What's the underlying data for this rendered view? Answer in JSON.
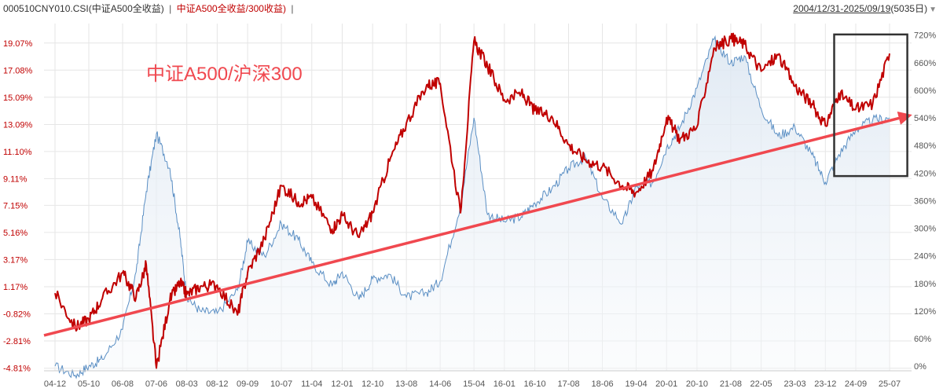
{
  "header": {
    "series1": "000510CNY010.CSI(中证A500全收益)",
    "sep1": "|",
    "series2": "中证A500全收益/300收益)",
    "sep2": "|",
    "date_range": "2004/12/31-2025/09/19",
    "days": "(5035日)",
    "dropdown_icon": "triangle-down-icon"
  },
  "annotation": {
    "text": "中证A500/沪深300",
    "color": "#f0484f"
  },
  "colors": {
    "ratio_line": "#c00000",
    "index_line": "#5b8fc4",
    "index_fill": "#e8eef6",
    "trend_arrow": "#f0484f",
    "highlight_box": "#333333",
    "grid": "#e6e6e6",
    "left_axis_text": "#c00000",
    "right_axis_text": "#555555",
    "x_axis_text": "#555555"
  },
  "chart_data": {
    "type": "line",
    "x_ticks": [
      "04-12",
      "05-10",
      "06-08",
      "07-06",
      "08-03",
      "08-12",
      "09-09",
      "10-07",
      "11-04",
      "12-01",
      "12-10",
      "13-08",
      "14-06",
      "15-04",
      "16-01",
      "16-10",
      "17-08",
      "18-06",
      "19-04",
      "20-01",
      "20-10",
      "21-08",
      "22-05",
      "23-03",
      "23-12",
      "24-09",
      "25-07"
    ],
    "y_left_ticks": [
      "19.07%",
      "17.08%",
      "15.09%",
      "13.09%",
      "11.10%",
      "9.11%",
      "7.15%",
      "5.16%",
      "3.17%",
      "1.17%",
      "-0.82%",
      "-2.81%",
      "-4.81%"
    ],
    "y_left_values": [
      19.07,
      17.08,
      15.09,
      13.09,
      11.1,
      9.11,
      7.15,
      5.16,
      3.17,
      1.17,
      -0.82,
      -2.81,
      -4.81
    ],
    "y_right_ticks": [
      "720%",
      "660%",
      "600%",
      "540%",
      "480%",
      "420%",
      "360%",
      "300%",
      "240%",
      "180%",
      "120%",
      "60%",
      "0%"
    ],
    "y_right_values": [
      720,
      660,
      600,
      540,
      480,
      420,
      360,
      300,
      240,
      180,
      120,
      60,
      0
    ],
    "y_left_range": [
      -5.0,
      20.5
    ],
    "y_right_range": [
      -10,
      745
    ],
    "series": [
      {
        "name": "中证A500全收益/300收益",
        "axis": "left",
        "points": [
          [
            "04-12",
            0.7
          ],
          [
            "05-06",
            -1.8
          ],
          [
            "05-10",
            -1.2
          ],
          [
            "06-02",
            0.3
          ],
          [
            "06-08",
            2.2
          ],
          [
            "06-12",
            0.4
          ],
          [
            "07-03",
            2.8
          ],
          [
            "07-06",
            -4.8
          ],
          [
            "07-10",
            0.2
          ],
          [
            "08-01",
            1.5
          ],
          [
            "08-03",
            0.6
          ],
          [
            "08-07",
            1.2
          ],
          [
            "08-12",
            1.3
          ],
          [
            "09-06",
            -0.9
          ],
          [
            "09-09",
            2.2
          ],
          [
            "10-02",
            4.7
          ],
          [
            "10-07",
            8.6
          ],
          [
            "10-12",
            7.4
          ],
          [
            "11-04",
            7.7
          ],
          [
            "11-10",
            5.4
          ],
          [
            "12-01",
            6.4
          ],
          [
            "12-06",
            4.8
          ],
          [
            "12-10",
            6.6
          ],
          [
            "13-03",
            10.4
          ],
          [
            "13-08",
            13.2
          ],
          [
            "14-02",
            16.0
          ],
          [
            "14-06",
            16.1
          ],
          [
            "14-12",
            6.6
          ],
          [
            "15-04",
            19.2
          ],
          [
            "15-08",
            17.4
          ],
          [
            "16-01",
            14.9
          ],
          [
            "16-06",
            15.4
          ],
          [
            "16-10",
            14.1
          ],
          [
            "17-03",
            13.7
          ],
          [
            "17-08",
            11.6
          ],
          [
            "18-01",
            10.5
          ],
          [
            "18-06",
            10.0
          ],
          [
            "18-12",
            8.6
          ],
          [
            "19-04",
            8.1
          ],
          [
            "19-09",
            9.7
          ],
          [
            "20-01",
            13.6
          ],
          [
            "20-05",
            12.0
          ],
          [
            "20-10",
            12.9
          ],
          [
            "21-03",
            18.7
          ],
          [
            "21-08",
            19.4
          ],
          [
            "21-12",
            19.0
          ],
          [
            "22-05",
            17.0
          ],
          [
            "22-10",
            18.2
          ],
          [
            "23-03",
            15.9
          ],
          [
            "23-08",
            14.6
          ],
          [
            "23-12",
            13.0
          ],
          [
            "24-04",
            15.4
          ],
          [
            "24-09",
            14.2
          ],
          [
            "25-02",
            14.6
          ],
          [
            "25-07",
            18.3
          ]
        ]
      },
      {
        "name": "000510CNY010.CSI(中证A500全收益)",
        "axis": "right",
        "points": [
          [
            "04-12",
            0
          ],
          [
            "05-06",
            -20
          ],
          [
            "05-10",
            0
          ],
          [
            "06-02",
            15
          ],
          [
            "06-08",
            80
          ],
          [
            "06-12",
            205
          ],
          [
            "07-03",
            380
          ],
          [
            "07-06",
            505
          ],
          [
            "07-10",
            430
          ],
          [
            "08-01",
            280
          ],
          [
            "08-03",
            150
          ],
          [
            "08-07",
            120
          ],
          [
            "08-12",
            115
          ],
          [
            "09-06",
            165
          ],
          [
            "09-09",
            270
          ],
          [
            "10-02",
            240
          ],
          [
            "10-07",
            310
          ],
          [
            "10-12",
            275
          ],
          [
            "11-04",
            225
          ],
          [
            "11-10",
            175
          ],
          [
            "12-01",
            205
          ],
          [
            "12-06",
            145
          ],
          [
            "12-10",
            190
          ],
          [
            "13-03",
            200
          ],
          [
            "13-08",
            150
          ],
          [
            "14-02",
            160
          ],
          [
            "14-06",
            185
          ],
          [
            "14-12",
            350
          ],
          [
            "15-04",
            540
          ],
          [
            "15-08",
            330
          ],
          [
            "16-01",
            315
          ],
          [
            "16-06",
            325
          ],
          [
            "16-10",
            355
          ],
          [
            "17-03",
            385
          ],
          [
            "17-08",
            430
          ],
          [
            "18-01",
            455
          ],
          [
            "18-06",
            365
          ],
          [
            "18-12",
            310
          ],
          [
            "19-04",
            390
          ],
          [
            "19-09",
            400
          ],
          [
            "20-01",
            475
          ],
          [
            "20-05",
            520
          ],
          [
            "20-10",
            605
          ],
          [
            "21-03",
            710
          ],
          [
            "21-08",
            660
          ],
          [
            "21-12",
            675
          ],
          [
            "22-05",
            560
          ],
          [
            "22-10",
            500
          ],
          [
            "23-03",
            520
          ],
          [
            "23-08",
            460
          ],
          [
            "23-12",
            400
          ],
          [
            "24-04",
            460
          ],
          [
            "24-09",
            515
          ],
          [
            "25-02",
            535
          ],
          [
            "25-07",
            540
          ]
        ]
      }
    ],
    "trend_arrow": {
      "from": [
        "04-12",
        -2.4
      ],
      "to": [
        "25-07",
        13.7
      ]
    },
    "highlight_box": {
      "x_from": "24-04",
      "x_to": "25-09",
      "y_from": 9.3,
      "y_to": 19.7
    },
    "grid": true
  }
}
